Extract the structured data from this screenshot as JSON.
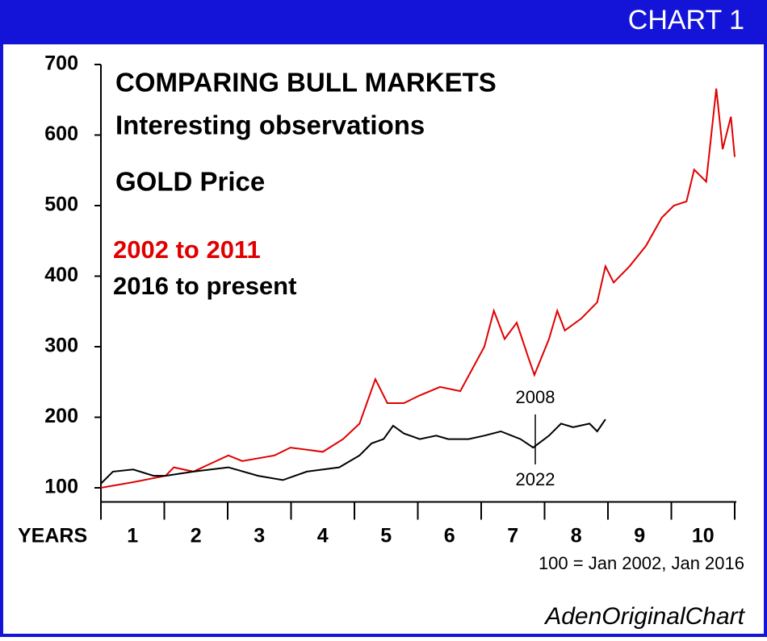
{
  "chart_data": {
    "type": "line",
    "header": "CHART 1",
    "title": "COMPARING BULL MARKETS",
    "subtitle": "Interesting observations",
    "subject": "GOLD Price",
    "x_label": "YEARS",
    "year_labels": [
      "1",
      "2",
      "3",
      "4",
      "5",
      "6",
      "7",
      "8",
      "9",
      "10"
    ],
    "note": "100 = Jan 2002, Jan 2016",
    "source": "AdenOriginalChart",
    "annotations": [
      "2008",
      "2022"
    ],
    "xlim": [
      0,
      10
    ],
    "xticks": [
      0,
      1,
      2,
      3,
      4,
      5,
      6,
      7,
      8,
      9,
      10
    ],
    "ylim": [
      80,
      700
    ],
    "yticks": [
      100,
      200,
      300,
      400,
      500,
      600,
      700
    ],
    "series": [
      {
        "name": "2002 to 2011",
        "color": "#e00000",
        "x": [
          0,
          0.51,
          1.02,
          1.15,
          1.46,
          2.01,
          2.23,
          2.74,
          2.99,
          3.5,
          3.82,
          4.08,
          4.33,
          4.52,
          4.78,
          5.03,
          5.35,
          5.67,
          6.05,
          6.2,
          6.37,
          6.56,
          6.75,
          6.84,
          7.07,
          7.2,
          7.32,
          7.58,
          7.83,
          7.96,
          8.09,
          8.34,
          8.6,
          8.85,
          9.04,
          9.24,
          9.36,
          9.55,
          9.71,
          9.81,
          9.94,
          10
        ],
        "values": [
          100,
          108,
          117,
          129,
          123,
          146,
          138,
          146,
          157,
          151,
          169,
          191,
          254,
          220,
          220,
          231,
          243,
          237,
          300,
          351,
          311,
          334,
          283,
          260,
          311,
          351,
          323,
          340,
          363,
          414,
          391,
          414,
          443,
          483,
          500,
          506,
          551,
          534,
          666,
          580,
          626,
          569
        ]
      },
      {
        "name": "2016 to present",
        "color": "#000000",
        "x": [
          0,
          0.19,
          0.51,
          0.83,
          1.02,
          1.46,
          2.01,
          2.48,
          2.87,
          3.25,
          3.76,
          4.08,
          4.27,
          4.46,
          4.61,
          4.78,
          5.03,
          5.29,
          5.48,
          5.8,
          6.05,
          6.31,
          6.62,
          6.82,
          7.07,
          7.26,
          7.45,
          7.71,
          7.83,
          7.96
        ],
        "values": [
          106,
          123,
          126,
          117,
          117,
          123,
          129,
          117,
          111,
          123,
          129,
          146,
          163,
          169,
          188,
          177,
          169,
          174,
          169,
          169,
          174,
          180,
          169,
          157,
          174,
          191,
          186,
          191,
          180,
          197
        ]
      }
    ]
  }
}
